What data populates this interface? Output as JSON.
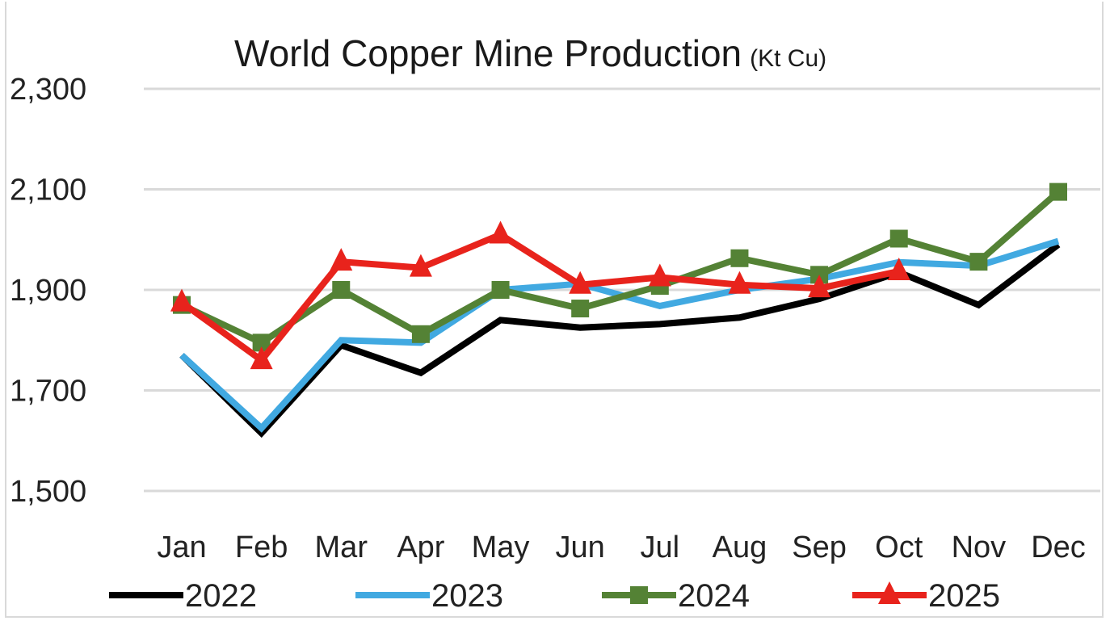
{
  "chart_data": {
    "type": "line",
    "title": "World Copper Mine Production",
    "subtitle": "(Kt Cu)",
    "xlabel": "",
    "ylabel": "",
    "categories": [
      "Jan",
      "Feb",
      "Mar",
      "Apr",
      "May",
      "Jun",
      "Jul",
      "Aug",
      "Sep",
      "Oct",
      "Nov",
      "Dec"
    ],
    "yticks": [
      1500,
      1700,
      1900,
      2100,
      2300
    ],
    "ytick_labels": [
      "1,500",
      "1,700",
      "1,900",
      "2,100",
      "2,300"
    ],
    "ylim": [
      1500,
      2300
    ],
    "grid": true,
    "legend_position": "bottom",
    "series": [
      {
        "name": "2022",
        "color": "#000000",
        "marker": "none",
        "values": [
          1770,
          1615,
          1790,
          1735,
          1840,
          1825,
          1832,
          1845,
          1882,
          1935,
          1870,
          1990
        ]
      },
      {
        "name": "2023",
        "color": "#41a9e1",
        "marker": "none",
        "values": [
          1770,
          1625,
          1800,
          1795,
          1900,
          1912,
          1868,
          1900,
          1922,
          1955,
          1948,
          1997
        ]
      },
      {
        "name": "2024",
        "color": "#548235",
        "marker": "square",
        "values": [
          1870,
          1795,
          1900,
          1812,
          1900,
          1863,
          1908,
          1963,
          1930,
          2002,
          1956,
          2095
        ]
      },
      {
        "name": "2025",
        "color": "#e8231c",
        "marker": "triangle",
        "values": [
          1875,
          1760,
          1956,
          1944,
          2010,
          1910,
          1925,
          1910,
          1903,
          1937,
          null,
          null
        ]
      }
    ]
  }
}
